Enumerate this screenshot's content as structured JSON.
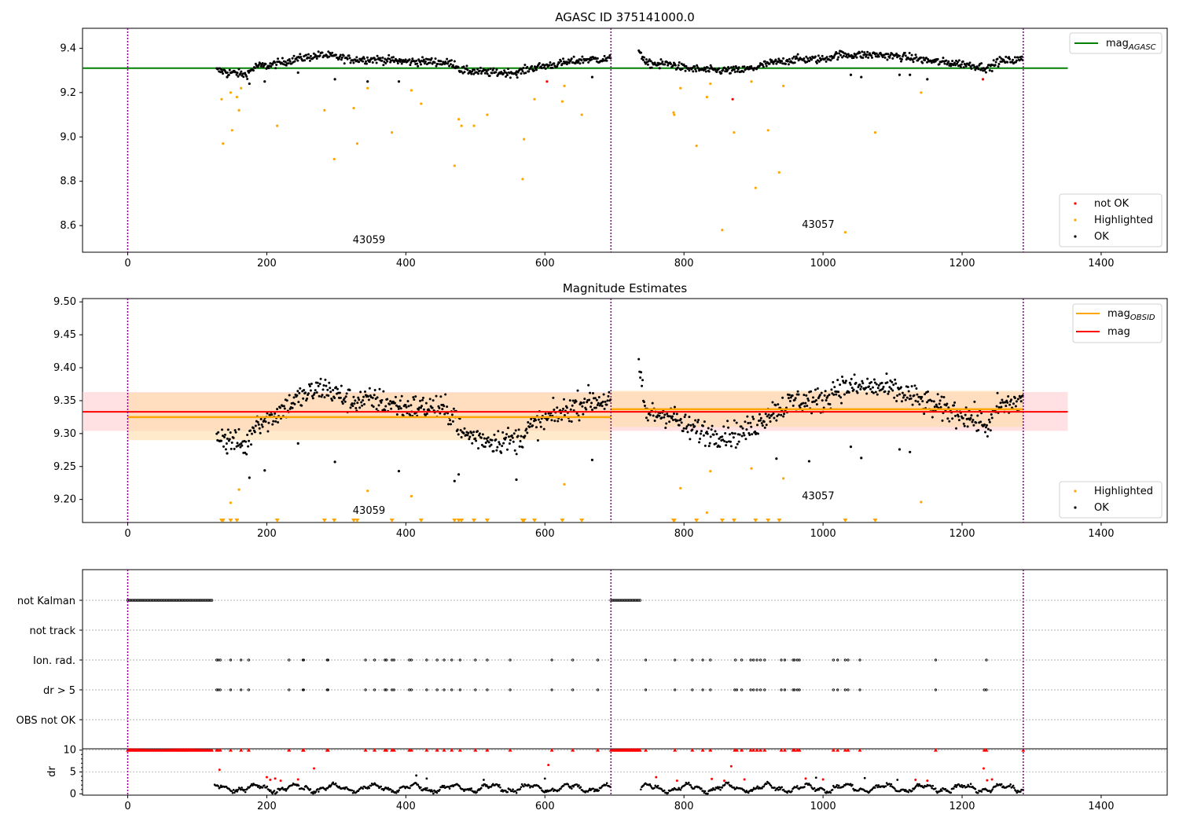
{
  "colors": {
    "agasc_line": "#008000",
    "obsid_line": "#ffa500",
    "mag_line": "#ff0000",
    "band_obsid": "#ffdca8",
    "band_mag": "#ffc6cc",
    "obsid_boundary": "#800080",
    "ok": "#000000",
    "highlighted": "#ffa500",
    "not_ok": "#ff0000",
    "grid": "#b0b0b0"
  },
  "x_ticks": [
    0,
    200,
    400,
    600,
    800,
    1000,
    1200,
    1400
  ],
  "obsid_boundaries": [
    0,
    695,
    1288
  ],
  "obsids": [
    {
      "label": "43059",
      "x": 347
    },
    {
      "label": "43057",
      "x": 993
    }
  ],
  "chart_data": [
    {
      "type": "scatter",
      "title": "AGASC ID 375141000.0",
      "xlim": [
        -65,
        1495
      ],
      "ylim": [
        8.48,
        9.49
      ],
      "y_ticks": [
        "8.6",
        "8.8",
        "9.0",
        "9.2",
        "9.4"
      ],
      "mag_agasc": 9.31,
      "legend_top": {
        "label_main": "mag",
        "label_sub": "AGASC"
      },
      "legend_bottom": [
        "not OK",
        "Highlighted",
        "OK"
      ],
      "obsid_label_y": [
        8.52,
        8.59
      ],
      "highlighted_points": [
        [
          135,
          9.17
        ],
        [
          137,
          8.97
        ],
        [
          148,
          9.2
        ],
        [
          150,
          9.03
        ],
        [
          157,
          9.18
        ],
        [
          160,
          9.12
        ],
        [
          163,
          9.22
        ],
        [
          215,
          9.05
        ],
        [
          283,
          9.12
        ],
        [
          297,
          8.9
        ],
        [
          325,
          9.13
        ],
        [
          330,
          8.97
        ],
        [
          345,
          9.22
        ],
        [
          380,
          9.02
        ],
        [
          408,
          9.21
        ],
        [
          422,
          9.15
        ],
        [
          470,
          8.87
        ],
        [
          476,
          9.08
        ],
        [
          480,
          9.05
        ],
        [
          498,
          9.05
        ],
        [
          517,
          9.1
        ],
        [
          568,
          8.81
        ],
        [
          570,
          8.99
        ],
        [
          585,
          9.17
        ],
        [
          625,
          9.16
        ],
        [
          628,
          9.23
        ],
        [
          653,
          9.1
        ],
        [
          785,
          9.11
        ],
        [
          786,
          9.1
        ],
        [
          795,
          9.22
        ],
        [
          818,
          8.96
        ],
        [
          833,
          9.18
        ],
        [
          838,
          9.24
        ],
        [
          855,
          8.58
        ],
        [
          872,
          9.02
        ],
        [
          897,
          9.25
        ],
        [
          903,
          8.77
        ],
        [
          921,
          9.03
        ],
        [
          937,
          8.84
        ],
        [
          943,
          9.23
        ],
        [
          1032,
          8.57
        ],
        [
          1075,
          9.02
        ],
        [
          1141,
          9.2
        ]
      ],
      "not_ok_points": [
        [
          603,
          9.25
        ],
        [
          870,
          9.17
        ],
        [
          1230,
          9.26
        ]
      ],
      "ok_outliers": [
        [
          143,
          9.27
        ],
        [
          175,
          9.24
        ],
        [
          197,
          9.25
        ],
        [
          245,
          9.29
        ],
        [
          298,
          9.26
        ],
        [
          345,
          9.25
        ],
        [
          390,
          9.25
        ],
        [
          559,
          9.28
        ],
        [
          668,
          9.27
        ],
        [
          765,
          9.31
        ],
        [
          1040,
          9.28
        ],
        [
          1055,
          9.27
        ],
        [
          1110,
          9.28
        ],
        [
          1125,
          9.28
        ],
        [
          1150,
          9.26
        ]
      ],
      "ok_profile": [
        [
          128,
          9.3
        ],
        [
          150,
          9.29
        ],
        [
          170,
          9.28
        ],
        [
          185,
          9.32
        ],
        [
          200,
          9.32
        ],
        [
          240,
          9.35
        ],
        [
          280,
          9.37
        ],
        [
          320,
          9.35
        ],
        [
          360,
          9.35
        ],
        [
          400,
          9.34
        ],
        [
          440,
          9.34
        ],
        [
          470,
          9.33
        ],
        [
          480,
          9.3
        ],
        [
          520,
          9.29
        ],
        [
          560,
          9.29
        ],
        [
          580,
          9.31
        ],
        [
          620,
          9.33
        ],
        [
          660,
          9.35
        ],
        [
          695,
          9.35
        ],
        null,
        [
          735,
          9.4
        ],
        [
          745,
          9.33
        ],
        [
          780,
          9.33
        ],
        [
          800,
          9.31
        ],
        [
          840,
          9.3
        ],
        [
          880,
          9.3
        ],
        [
          900,
          9.31
        ],
        [
          920,
          9.33
        ],
        [
          960,
          9.35
        ],
        [
          1000,
          9.35
        ],
        [
          1020,
          9.37
        ],
        [
          1080,
          9.37
        ],
        [
          1120,
          9.36
        ],
        [
          1160,
          9.34
        ],
        [
          1200,
          9.33
        ],
        [
          1240,
          9.31
        ],
        [
          1250,
          9.34
        ],
        [
          1288,
          9.35
        ]
      ],
      "ok_jitter": 0.015
    },
    {
      "type": "scatter",
      "title": "Magnitude Estimates",
      "xlim": [
        -65,
        1495
      ],
      "ylim": [
        9.165,
        9.505
      ],
      "y_ticks": [
        "9.20",
        "9.25",
        "9.30",
        "9.35",
        "9.40",
        "9.45",
        "9.50"
      ],
      "mag": {
        "value": 9.333,
        "lo": 9.304,
        "hi": 9.363,
        "xrange": [
          -65,
          1352
        ]
      },
      "mag_obsid": [
        {
          "x0": 0,
          "x1": 695,
          "value": 9.325,
          "lo": 9.29,
          "hi": 9.362
        },
        {
          "x0": 695,
          "x1": 1288,
          "value": 9.337,
          "lo": 9.31,
          "hi": 9.365
        }
      ],
      "legend_top": [
        {
          "label_main": "mag",
          "label_sub": "OBSID"
        },
        {
          "label_main": "mag",
          "label_sub": ""
        }
      ],
      "legend_bottom": [
        "Highlighted",
        "OK"
      ],
      "obsid_label_y": [
        9.178,
        9.2
      ],
      "highlighted_points": [
        [
          148,
          9.195
        ],
        [
          160,
          9.215
        ],
        [
          345,
          9.213
        ],
        [
          408,
          9.205
        ],
        [
          628,
          9.223
        ],
        [
          795,
          9.217
        ],
        [
          838,
          9.243
        ],
        [
          897,
          9.247
        ],
        [
          943,
          9.232
        ],
        [
          1141,
          9.196
        ],
        [
          833,
          9.18
        ]
      ],
      "off_scale_x": [
        135,
        137,
        148,
        157,
        215,
        283,
        297,
        325,
        330,
        380,
        422,
        470,
        476,
        480,
        498,
        517,
        568,
        570,
        585,
        625,
        653,
        785,
        786,
        818,
        855,
        872,
        903,
        921,
        937,
        1032,
        1075
      ],
      "ok_outliers": [
        [
          143,
          9.27
        ],
        [
          175,
          9.233
        ],
        [
          197,
          9.244
        ],
        [
          245,
          9.285
        ],
        [
          298,
          9.257
        ],
        [
          390,
          9.243
        ],
        [
          470,
          9.228
        ],
        [
          476,
          9.238
        ],
        [
          559,
          9.23
        ],
        [
          668,
          9.26
        ],
        [
          1040,
          9.28
        ],
        [
          1055,
          9.263
        ],
        [
          1110,
          9.276
        ],
        [
          1125,
          9.272
        ],
        [
          933,
          9.262
        ],
        [
          980,
          9.258
        ]
      ],
      "ok_profile": [
        [
          128,
          9.3
        ],
        [
          150,
          9.29
        ],
        [
          170,
          9.28
        ],
        [
          185,
          9.32
        ],
        [
          200,
          9.32
        ],
        [
          240,
          9.35
        ],
        [
          280,
          9.37
        ],
        [
          320,
          9.35
        ],
        [
          360,
          9.35
        ],
        [
          400,
          9.34
        ],
        [
          440,
          9.34
        ],
        [
          470,
          9.33
        ],
        [
          480,
          9.3
        ],
        [
          520,
          9.29
        ],
        [
          560,
          9.29
        ],
        [
          580,
          9.31
        ],
        [
          620,
          9.33
        ],
        [
          660,
          9.35
        ],
        [
          695,
          9.35
        ],
        null,
        [
          735,
          9.4
        ],
        [
          745,
          9.33
        ],
        [
          780,
          9.33
        ],
        [
          800,
          9.31
        ],
        [
          840,
          9.3
        ],
        [
          880,
          9.3
        ],
        [
          900,
          9.31
        ],
        [
          920,
          9.33
        ],
        [
          960,
          9.35
        ],
        [
          1000,
          9.35
        ],
        [
          1020,
          9.37
        ],
        [
          1080,
          9.37
        ],
        [
          1120,
          9.36
        ],
        [
          1160,
          9.34
        ],
        [
          1200,
          9.33
        ],
        [
          1240,
          9.31
        ],
        [
          1250,
          9.34
        ],
        [
          1288,
          9.35
        ]
      ],
      "ok_jitter": 0.016
    },
    {
      "type": "flags",
      "xlim": [
        -65,
        1495
      ],
      "categories": [
        "not Kalman",
        "not track",
        "Ion. rad.",
        "dr > 5",
        "OBS not OK"
      ],
      "not_kalman_ranges": [
        [
          0,
          123
        ],
        [
          695,
          738
        ]
      ],
      "ion_rad_x": [
        128,
        130,
        133,
        148,
        163,
        174,
        232,
        252,
        253,
        287,
        288,
        342,
        355,
        370,
        372,
        380,
        383,
        405,
        408,
        430,
        445,
        455,
        466,
        478,
        500,
        517,
        550,
        610,
        640,
        676,
        745,
        787,
        812,
        827,
        838,
        874,
        883,
        896,
        900,
        905,
        910,
        916,
        940,
        945,
        957,
        959,
        963,
        966,
        1015,
        1021,
        1032,
        1036,
        1053,
        1162,
        1235
      ],
      "dr5_x": [
        128,
        130,
        133,
        148,
        163,
        174,
        232,
        252,
        253,
        287,
        288,
        342,
        355,
        370,
        372,
        380,
        383,
        405,
        408,
        430,
        445,
        455,
        466,
        478,
        500,
        517,
        550,
        610,
        640,
        676,
        745,
        787,
        812,
        827,
        838,
        873,
        876,
        883,
        896,
        900,
        905,
        910,
        916,
        940,
        945,
        957,
        959,
        963,
        966,
        1015,
        1021,
        1032,
        1036,
        1053,
        1162,
        1232,
        1235
      ]
    },
    {
      "type": "line",
      "ylabel": "dr",
      "xlim": [
        -65,
        1495
      ],
      "ylim": [
        -0.3,
        10.3
      ],
      "y_ticks": [
        "0",
        "5",
        "10"
      ],
      "clip_value": 10,
      "clipped_ranges": [
        [
          0,
          123
        ],
        [
          695,
          738
        ]
      ],
      "clipped_x": [
        128,
        130,
        133,
        148,
        163,
        174,
        232,
        252,
        253,
        287,
        288,
        342,
        355,
        370,
        372,
        380,
        383,
        405,
        408,
        430,
        445,
        455,
        466,
        478,
        500,
        517,
        550,
        610,
        640,
        676,
        745,
        787,
        812,
        827,
        838,
        873,
        876,
        883,
        896,
        900,
        905,
        910,
        916,
        940,
        945,
        957,
        959,
        963,
        966,
        1015,
        1021,
        1032,
        1036,
        1053,
        1162,
        1232,
        1235,
        1288
      ],
      "red_points": [
        [
          132,
          5.5
        ],
        [
          268,
          5.8
        ],
        [
          605,
          6.6
        ],
        [
          868,
          6.3
        ],
        [
          1231,
          5.8
        ],
        [
          200,
          3.8
        ],
        [
          205,
          3.2
        ],
        [
          212,
          3.5
        ],
        [
          220,
          3.0
        ],
        [
          245,
          3.3
        ],
        [
          760,
          3.8
        ],
        [
          790,
          3.0
        ],
        [
          840,
          3.4
        ],
        [
          858,
          3.0
        ],
        [
          887,
          3.3
        ],
        [
          975,
          3.5
        ],
        [
          1000,
          3.3
        ],
        [
          1133,
          3.2
        ],
        [
          1150,
          3.0
        ],
        [
          1236,
          3.1
        ],
        [
          1243,
          3.3
        ]
      ],
      "dr_extra": [
        [
          415,
          4.2
        ],
        [
          430,
          3.5
        ],
        [
          512,
          3.2
        ],
        [
          600,
          3.5
        ],
        [
          990,
          3.7
        ],
        [
          1060,
          3.6
        ],
        [
          1107,
          3.2
        ]
      ],
      "black_ranges": [
        [
          125,
          695
        ],
        [
          738,
          1288
        ]
      ]
    }
  ]
}
